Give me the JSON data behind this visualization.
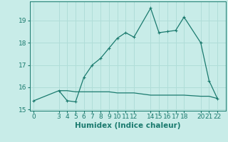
{
  "xlabel": "Humidex (Indice chaleur)",
  "background_color": "#c8ece8",
  "grid_color": "#b0ddd8",
  "line_color": "#1a7a6e",
  "x_main": [
    0,
    3,
    4,
    5,
    6,
    7,
    8,
    9,
    10,
    11,
    12,
    14,
    15,
    16,
    17,
    18,
    20,
    21,
    22
  ],
  "y_main": [
    15.4,
    15.85,
    15.4,
    15.35,
    16.45,
    17.0,
    17.3,
    17.75,
    18.2,
    18.45,
    18.25,
    19.55,
    18.45,
    18.5,
    18.55,
    19.15,
    18.0,
    16.3,
    15.5
  ],
  "x_flat": [
    3,
    4,
    5,
    6,
    7,
    8,
    9,
    10,
    11,
    12,
    14,
    15,
    16,
    17,
    18,
    20,
    21,
    22
  ],
  "y_flat": [
    15.85,
    15.85,
    15.8,
    15.8,
    15.8,
    15.8,
    15.8,
    15.75,
    15.75,
    15.75,
    15.65,
    15.65,
    15.65,
    15.65,
    15.65,
    15.6,
    15.6,
    15.5
  ],
  "xlim": [
    -0.5,
    23.0
  ],
  "ylim": [
    14.95,
    19.85
  ],
  "xticks": [
    0,
    3,
    4,
    5,
    6,
    7,
    8,
    9,
    10,
    11,
    12,
    14,
    15,
    16,
    17,
    18,
    20,
    21,
    22
  ],
  "yticks": [
    15,
    16,
    17,
    18,
    19
  ],
  "tick_fontsize": 6.5,
  "xlabel_fontsize": 7.5
}
